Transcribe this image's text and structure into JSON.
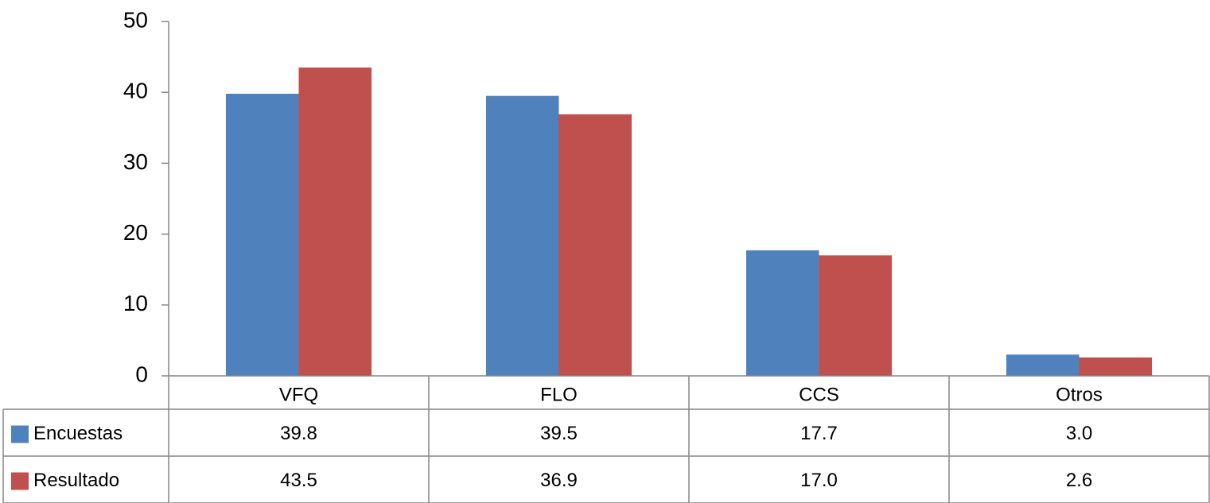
{
  "chart_data": {
    "type": "bar",
    "categories": [
      "VFQ",
      "FLO",
      "CCS",
      "Otros"
    ],
    "series": [
      {
        "name": "Encuestas",
        "color": "#4f81bd",
        "values": [
          39.8,
          39.5,
          17.7,
          3.0
        ],
        "value_labels": [
          "39.8",
          "39.5",
          "17.7",
          "3.0"
        ]
      },
      {
        "name": "Resultado",
        "color": "#c0504d",
        "values": [
          43.5,
          36.9,
          17.0,
          2.6
        ],
        "value_labels": [
          "43.5",
          "36.9",
          "17.0",
          "2.6"
        ]
      }
    ],
    "ylim": [
      0,
      50
    ],
    "yticks": [
      0,
      10,
      20,
      30,
      40,
      50
    ],
    "grid": false,
    "data_table": true
  }
}
